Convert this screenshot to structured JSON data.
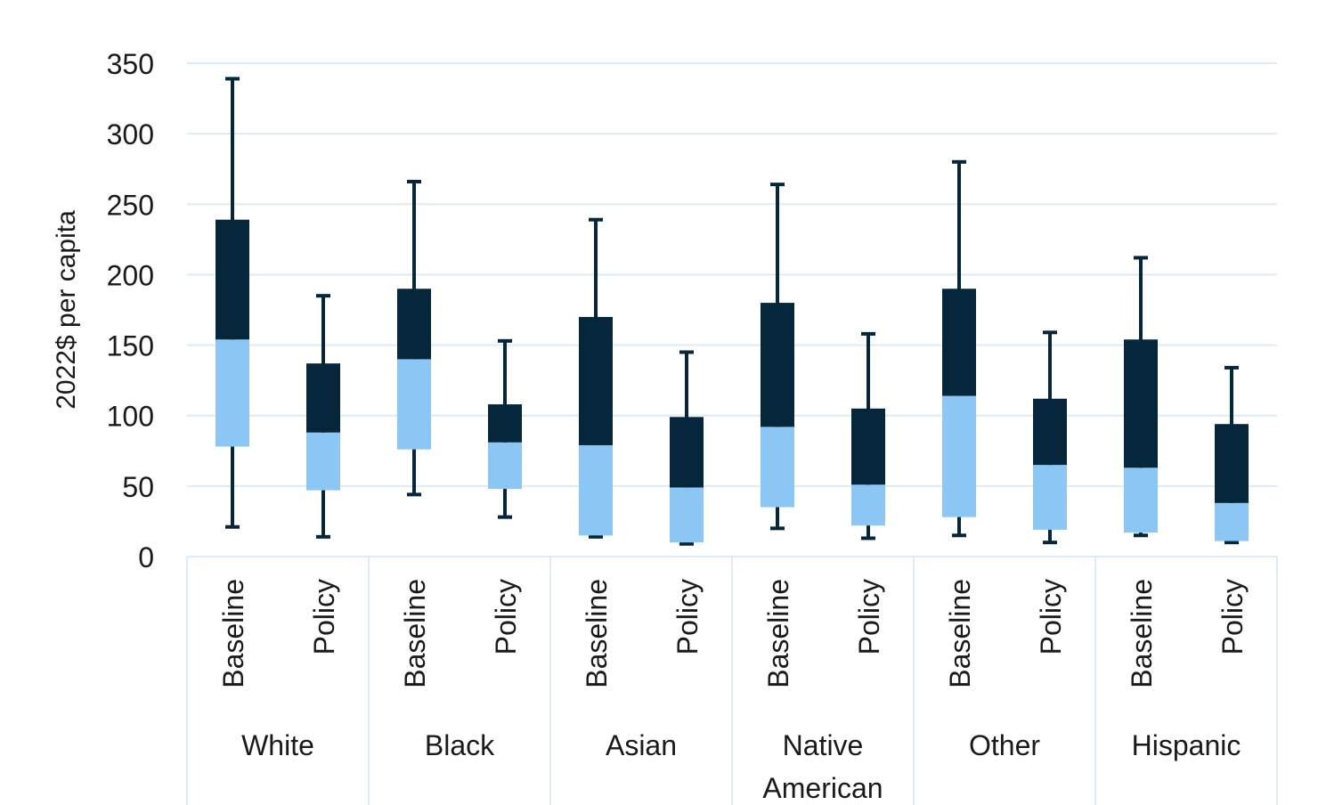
{
  "chart_data": {
    "type": "box",
    "ylabel": "2022$ per capita",
    "ylim": [
      0,
      350
    ],
    "yticks": [
      0,
      50,
      100,
      150,
      200,
      250,
      300,
      350
    ],
    "grid": true,
    "colors": {
      "lower": "#8CC6F5",
      "upper": "#06263C",
      "whisker": "#06263C",
      "grid": "#DDEBF7"
    },
    "groups": [
      {
        "name": "White",
        "items": [
          {
            "label": "Baseline",
            "min": 21,
            "q1": 78,
            "median": 154,
            "q3": 239,
            "max": 339
          },
          {
            "label": "Policy",
            "min": 14,
            "q1": 47,
            "median": 88,
            "q3": 137,
            "max": 185
          }
        ]
      },
      {
        "name": "Black",
        "items": [
          {
            "label": "Baseline",
            "min": 44,
            "q1": 76,
            "median": 140,
            "q3": 190,
            "max": 266
          },
          {
            "label": "Policy",
            "min": 28,
            "q1": 48,
            "median": 81,
            "q3": 108,
            "max": 153
          }
        ]
      },
      {
        "name": "Asian",
        "items": [
          {
            "label": "Baseline",
            "min": 14,
            "q1": 15,
            "median": 79,
            "q3": 170,
            "max": 239
          },
          {
            "label": "Policy",
            "min": 9,
            "q1": 10,
            "median": 49,
            "q3": 99,
            "max": 145
          }
        ]
      },
      {
        "name": "Native American",
        "lines": [
          "Native",
          "American"
        ],
        "items": [
          {
            "label": "Baseline",
            "min": 20,
            "q1": 35,
            "median": 92,
            "q3": 180,
            "max": 264
          },
          {
            "label": "Policy",
            "min": 13,
            "q1": 22,
            "median": 51,
            "q3": 105,
            "max": 158
          }
        ]
      },
      {
        "name": "Other",
        "items": [
          {
            "label": "Baseline",
            "min": 15,
            "q1": 28,
            "median": 114,
            "q3": 190,
            "max": 280
          },
          {
            "label": "Policy",
            "min": 10,
            "q1": 19,
            "median": 65,
            "q3": 112,
            "max": 159
          }
        ]
      },
      {
        "name": "Hispanic",
        "items": [
          {
            "label": "Baseline",
            "min": 15,
            "q1": 17,
            "median": 63,
            "q3": 154,
            "max": 212
          },
          {
            "label": "Policy",
            "min": 10,
            "q1": 11,
            "median": 38,
            "q3": 94,
            "max": 134
          }
        ]
      }
    ]
  }
}
